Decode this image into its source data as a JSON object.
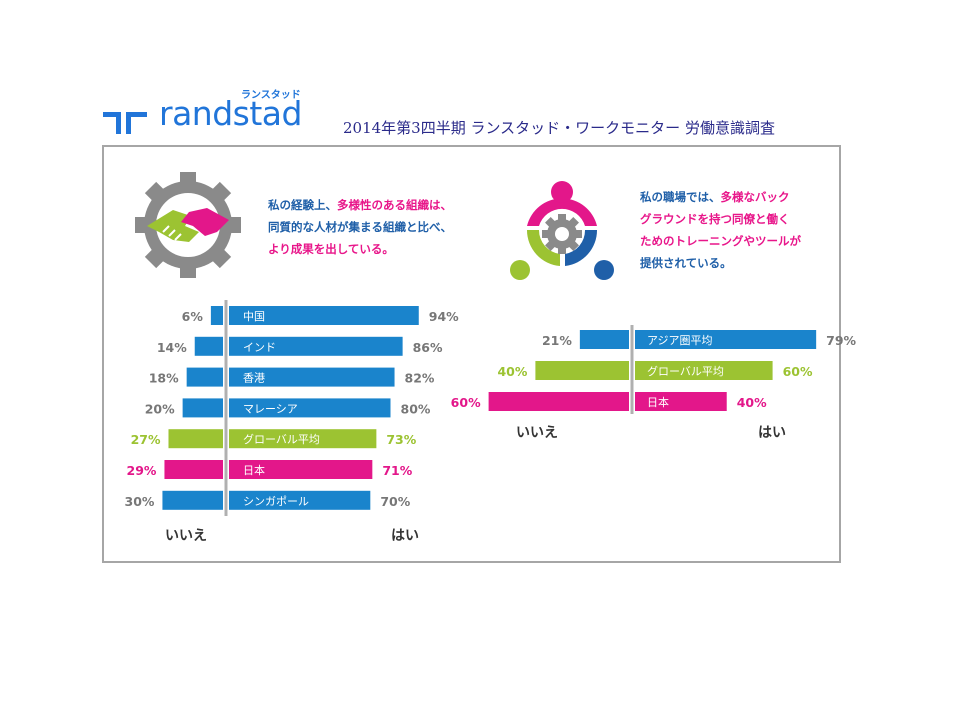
{
  "header": {
    "brand": "randstad",
    "brand_kana": "ランスタッド",
    "title": "2014年第3四半期 ランスタッド・ワークモニター 労働意識調査"
  },
  "colors": {
    "brand_blue": "#2175d9",
    "bar_blue": "#1a84cc",
    "bar_green": "#9cc332",
    "bar_pink": "#e3178a",
    "label_gray": "#777777",
    "frame_gray": "#a6a6a6"
  },
  "left_panel": {
    "icon": "handshake-gear-icon",
    "question_lines": [
      [
        {
          "text": "私の経験上、",
          "color": "blue"
        },
        {
          "text": "多様性のある組織は、",
          "color": "pink"
        }
      ],
      [
        {
          "text": "同質的な人材が集まる組織と比べ、",
          "color": "blue"
        }
      ],
      [
        {
          "text": "より成果を出している。",
          "color": "pink"
        }
      ]
    ]
  },
  "right_panel": {
    "icon": "team-gear-icon",
    "question_lines": [
      [
        {
          "text": "私の職場では、",
          "color": "blue"
        },
        {
          "text": "多様なバック",
          "color": "pink"
        }
      ],
      [
        {
          "text": "グラウンドを持つ同僚と働く",
          "color": "pink"
        }
      ],
      [
        {
          "text": "ためのトレーニングやツールが",
          "color": "pink"
        }
      ],
      [
        {
          "text": "提供されている。",
          "color": "blue"
        }
      ]
    ]
  },
  "chart_data": [
    {
      "type": "bar",
      "orientation": "diverging-horizontal",
      "categories": [
        "中国",
        "インド",
        "香港",
        "マレーシア",
        "グローバル平均",
        "日本",
        "シンガポール"
      ],
      "series": [
        {
          "name": "いいえ",
          "values": [
            6,
            14,
            18,
            20,
            27,
            29,
            30
          ]
        },
        {
          "name": "はい",
          "values": [
            94,
            86,
            82,
            80,
            73,
            71,
            70
          ]
        }
      ],
      "highlight": [
        "blue",
        "blue",
        "blue",
        "blue",
        "green",
        "pink",
        "blue"
      ],
      "left_label": "いいえ",
      "right_label": "はい",
      "unit": "%"
    },
    {
      "type": "bar",
      "orientation": "diverging-horizontal",
      "categories": [
        "アジア圏平均",
        "グローバル平均",
        "日本"
      ],
      "series": [
        {
          "name": "いいえ",
          "values": [
            21,
            40,
            60
          ]
        },
        {
          "name": "はい",
          "values": [
            79,
            60,
            40
          ]
        }
      ],
      "highlight": [
        "blue",
        "green",
        "pink"
      ],
      "left_label": "いいえ",
      "right_label": "はい",
      "unit": "%"
    }
  ]
}
